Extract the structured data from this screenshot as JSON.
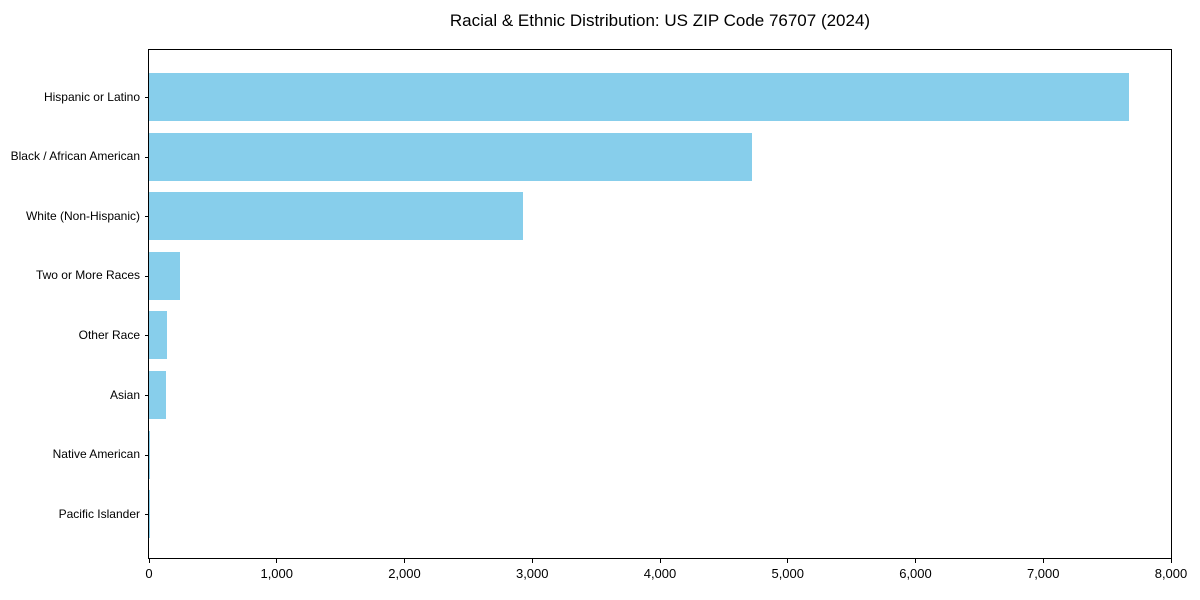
{
  "title": "Racial & Ethnic Distribution: US ZIP Code 76707 (2024)",
  "chart_data": {
    "type": "bar",
    "orientation": "horizontal",
    "title": "Racial & Ethnic Distribution: US ZIP Code 76707 (2024)",
    "categories": [
      "Hispanic or Latino",
      "Black / African American",
      "White (Non-Hispanic)",
      "Two or More Races",
      "Other Race",
      "Asian",
      "Native American",
      "Pacific Islander"
    ],
    "values": [
      7670,
      4720,
      2930,
      240,
      140,
      135,
      10,
      4
    ],
    "xlabel": "",
    "ylabel": "",
    "xlim": [
      0,
      8000
    ],
    "xticks": [
      0,
      1000,
      2000,
      3000,
      4000,
      5000,
      6000,
      7000,
      8000
    ],
    "xtick_labels": [
      "0",
      "1,000",
      "2,000",
      "3,000",
      "4,000",
      "5,000",
      "6,000",
      "7,000",
      "8,000"
    ],
    "bar_color": "#87CEEB",
    "spine_color": "#000000",
    "background_color": "#ffffff",
    "grid": false,
    "legend": null
  }
}
